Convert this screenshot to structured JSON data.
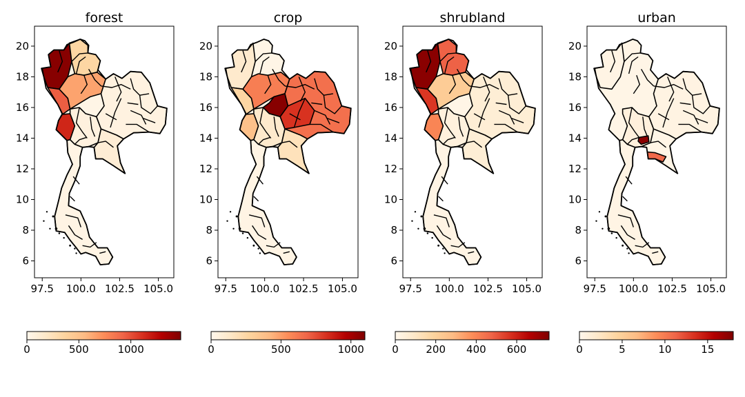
{
  "chart_data": [
    {
      "type": "choropleth",
      "title": "forest",
      "x_ticks": [
        "97.5",
        "100.0",
        "102.5",
        "105.0"
      ],
      "y_ticks": [
        "6",
        "8",
        "10",
        "12",
        "14",
        "16",
        "18",
        "20"
      ],
      "xlim": [
        97.0,
        106.0
      ],
      "ylim": [
        4.9,
        21.3
      ],
      "colorbar": {
        "cmap": "OrRd",
        "min": 0,
        "max": 1480,
        "ticks": [
          "0",
          "500",
          "1000"
        ],
        "tick_values": [
          0,
          500,
          1000
        ]
      },
      "region_values": {
        "northwest": 1450,
        "west_central": 950,
        "west_south": 1150,
        "lower_north": 650,
        "north_east_n": 350,
        "northeast": 60,
        "central": 70,
        "east": 120,
        "south": 40
      }
    },
    {
      "type": "choropleth",
      "title": "crop",
      "x_ticks": [
        "97.5",
        "100.0",
        "102.5",
        "105.0"
      ],
      "y_ticks": [
        "6",
        "8",
        "10",
        "12",
        "14",
        "16",
        "18",
        "20"
      ],
      "xlim": [
        97.0,
        106.0
      ],
      "ylim": [
        4.9,
        21.3
      ],
      "colorbar": {
        "cmap": "OrRd",
        "min": 0,
        "max": 1100,
        "ticks": [
          "0",
          "500",
          "1000"
        ],
        "tick_values": [
          0,
          500,
          1000
        ]
      },
      "region_values": {
        "northwest": 120,
        "west_central": 260,
        "west_south": 380,
        "lower_north": 600,
        "central_hot": 1080,
        "northeast": 650,
        "northeast_hot": 820,
        "central": 120,
        "east": 180,
        "south": 30
      }
    },
    {
      "type": "choropleth",
      "title": "shrubland",
      "x_ticks": [
        "97.5",
        "100.0",
        "102.5",
        "105.0"
      ],
      "y_ticks": [
        "6",
        "8",
        "10",
        "12",
        "14",
        "16",
        "18",
        "20"
      ],
      "xlim": [
        97.0,
        106.0
      ],
      "ylim": [
        4.9,
        21.3
      ],
      "colorbar": {
        "cmap": "OrRd",
        "min": 0,
        "max": 760,
        "ticks": [
          "0",
          "200",
          "400",
          "600"
        ],
        "tick_values": [
          0,
          200,
          400,
          600
        ]
      },
      "region_values": {
        "northwest": 740,
        "west_central": 560,
        "west_south": 400,
        "lower_north": 220,
        "north_east_n": 480,
        "northeast": 60,
        "central": 40,
        "east": 60,
        "south": 20
      }
    },
    {
      "type": "choropleth",
      "title": "urban",
      "x_ticks": [
        "97.5",
        "100.0",
        "102.5",
        "105.0"
      ],
      "y_ticks": [
        "6",
        "8",
        "10",
        "12",
        "14",
        "16",
        "18",
        "20"
      ],
      "xlim": [
        97.0,
        106.0
      ],
      "ylim": [
        4.9,
        21.3
      ],
      "colorbar": {
        "cmap": "OrRd",
        "min": 0,
        "max": 18,
        "ticks": [
          "0",
          "5",
          "10",
          "15"
        ],
        "tick_values": [
          0,
          5,
          10,
          15
        ]
      },
      "region_values": {
        "bangkok": 17.5,
        "east_coast": 11,
        "northwest": 0.5,
        "northeast": 0.6,
        "central": 1.0,
        "south": 0.5
      }
    }
  ]
}
